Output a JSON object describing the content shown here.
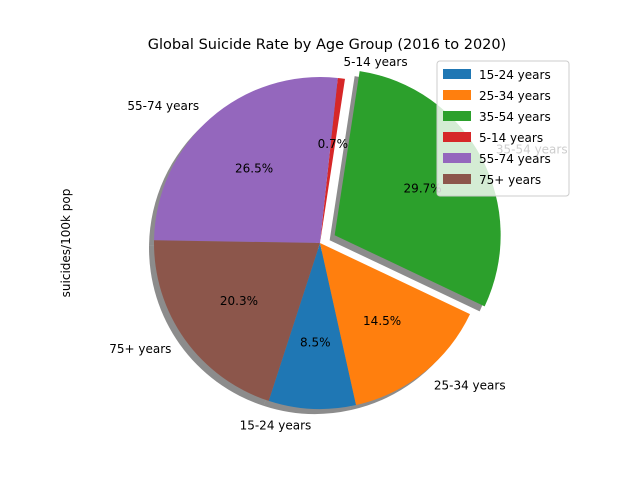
{
  "chart_data": {
    "type": "pie",
    "title": "Global Suicide Rate by Age Group (2016 to 2020)",
    "ylabel": "suicides/100k pop",
    "slices": [
      {
        "label": "15-24 years",
        "percent": 8.5,
        "pct_text": "8.5%",
        "color": "#1f77b4",
        "explode": false
      },
      {
        "label": "25-34 years",
        "percent": 14.5,
        "pct_text": "14.5%",
        "color": "#ff7f0e",
        "explode": false
      },
      {
        "label": "35-54 years",
        "percent": 29.7,
        "pct_text": "29.7%",
        "color": "#2ca02c",
        "explode": true
      },
      {
        "label": "5-14 years",
        "percent": 0.7,
        "pct_text": "0.7%",
        "color": "#d62728",
        "explode": false
      },
      {
        "label": "55-74 years",
        "percent": 26.5,
        "pct_text": "26.5%",
        "color": "#9467bd",
        "explode": false
      },
      {
        "label": "75+ years",
        "percent": 20.3,
        "pct_text": "20.3%",
        "color": "#8c564b",
        "explode": false
      }
    ],
    "start_angle_deg": 252,
    "shadow": true,
    "legend": {
      "placement": "top-right",
      "entries": [
        "15-24 years",
        "25-34 years",
        "35-54 years",
        "5-14 years",
        "55-74 years",
        "75+ years"
      ]
    }
  }
}
